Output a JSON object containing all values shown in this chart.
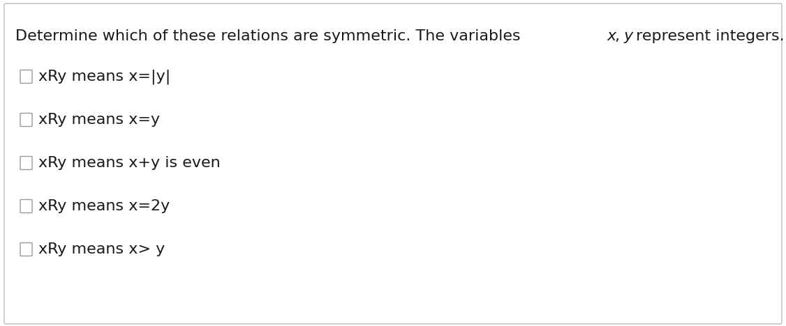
{
  "title_plain": "Determine which of these relations are symmetric. The variables ",
  "title_italic_x": "x",
  "title_comma": ", ",
  "title_italic_y": "y",
  "title_end": " represent integers.",
  "options": [
    "xRy means x=|y|",
    "xRy means x=y",
    "xRy means x+y is even",
    "xRy means x=2y",
    "xRy means x> y"
  ],
  "background_color": "#ffffff",
  "border_color": "#bbbbbb",
  "text_color": "#1a1a1a",
  "checkbox_color": "#999999",
  "title_fontsize": 16,
  "option_fontsize": 16,
  "fig_width": 11.26,
  "fig_height": 4.68,
  "dpi": 100
}
